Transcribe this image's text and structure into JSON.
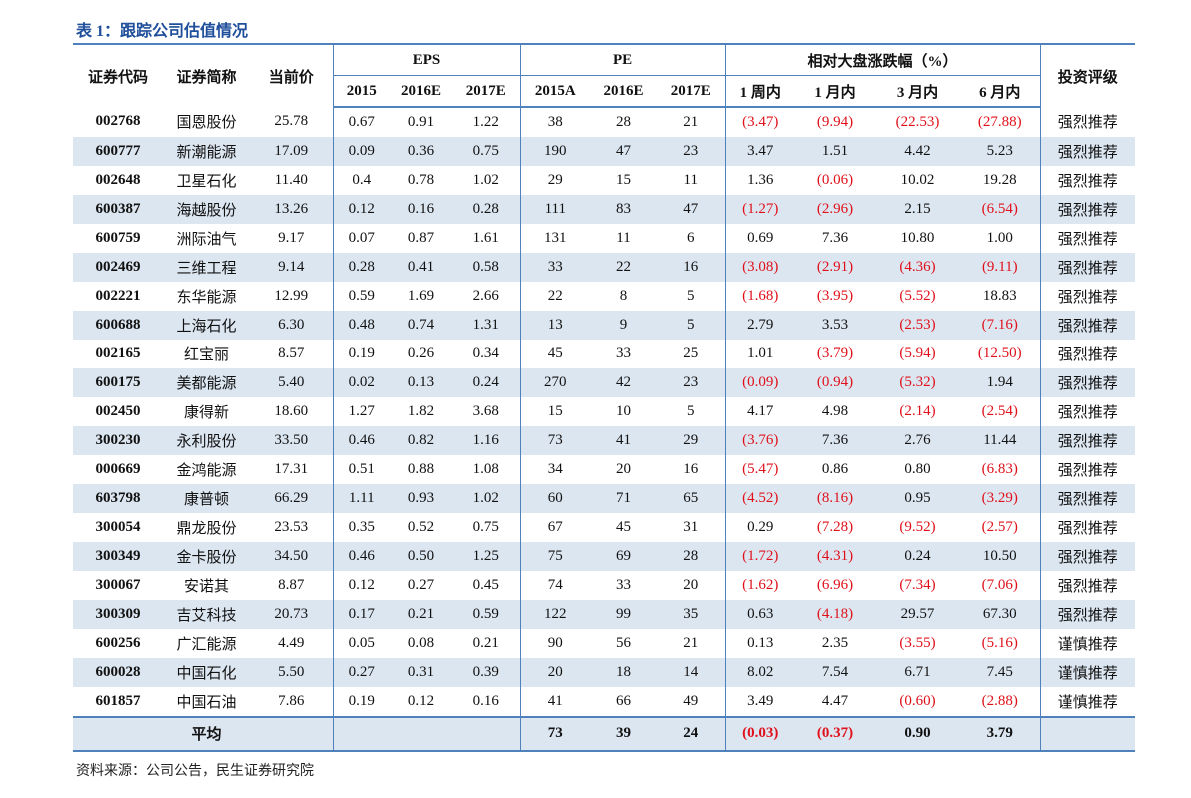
{
  "title": "表 1：跟踪公司估值情况",
  "header": {
    "code": "证券代码",
    "name": "证券简称",
    "price": "当前价",
    "eps": "EPS",
    "pe": "PE",
    "perf": "相对大盘涨跌幅（%）",
    "rating": "投资评级",
    "eps_years": [
      "2015",
      "2016E",
      "2017E"
    ],
    "pe_years": [
      "2015A",
      "2016E",
      "2017E"
    ],
    "perf_periods": [
      "1 周内",
      "1 月内",
      "3 月内",
      "6 月内"
    ]
  },
  "rows": [
    [
      "002768",
      "国恩股份",
      "25.78",
      "0.67",
      "0.91",
      "1.22",
      "38",
      "28",
      "21",
      "(3.47)",
      "(9.94)",
      "(22.53)",
      "(27.88)",
      "强烈推荐"
    ],
    [
      "600777",
      "新潮能源",
      "17.09",
      "0.09",
      "0.36",
      "0.75",
      "190",
      "47",
      "23",
      "3.47",
      "1.51",
      "4.42",
      "5.23",
      "强烈推荐"
    ],
    [
      "002648",
      "卫星石化",
      "11.40",
      "0.4",
      "0.78",
      "1.02",
      "29",
      "15",
      "11",
      "1.36",
      "(0.06)",
      "10.02",
      "19.28",
      "强烈推荐"
    ],
    [
      "600387",
      "海越股份",
      "13.26",
      "0.12",
      "0.16",
      "0.28",
      "111",
      "83",
      "47",
      "(1.27)",
      "(2.96)",
      "2.15",
      "(6.54)",
      "强烈推荐"
    ],
    [
      "600759",
      "洲际油气",
      "9.17",
      "0.07",
      "0.87",
      "1.61",
      "131",
      "11",
      "6",
      "0.69",
      "7.36",
      "10.80",
      "1.00",
      "强烈推荐"
    ],
    [
      "002469",
      "三维工程",
      "9.14",
      "0.28",
      "0.41",
      "0.58",
      "33",
      "22",
      "16",
      "(3.08)",
      "(2.91)",
      "(4.36)",
      "(9.11)",
      "强烈推荐"
    ],
    [
      "002221",
      "东华能源",
      "12.99",
      "0.59",
      "1.69",
      "2.66",
      "22",
      "8",
      "5",
      "(1.68)",
      "(3.95)",
      "(5.52)",
      "18.83",
      "强烈推荐"
    ],
    [
      "600688",
      "上海石化",
      "6.30",
      "0.48",
      "0.74",
      "1.31",
      "13",
      "9",
      "5",
      "2.79",
      "3.53",
      "(2.53)",
      "(7.16)",
      "强烈推荐"
    ],
    [
      "002165",
      "红宝丽",
      "8.57",
      "0.19",
      "0.26",
      "0.34",
      "45",
      "33",
      "25",
      "1.01",
      "(3.79)",
      "(5.94)",
      "(12.50)",
      "强烈推荐"
    ],
    [
      "600175",
      "美都能源",
      "5.40",
      "0.02",
      "0.13",
      "0.24",
      "270",
      "42",
      "23",
      "(0.09)",
      "(0.94)",
      "(5.32)",
      "1.94",
      "强烈推荐"
    ],
    [
      "002450",
      "康得新",
      "18.60",
      "1.27",
      "1.82",
      "3.68",
      "15",
      "10",
      "5",
      "4.17",
      "4.98",
      "(2.14)",
      "(2.54)",
      "强烈推荐"
    ],
    [
      "300230",
      "永利股份",
      "33.50",
      "0.46",
      "0.82",
      "1.16",
      "73",
      "41",
      "29",
      "(3.76)",
      "7.36",
      "2.76",
      "11.44",
      "强烈推荐"
    ],
    [
      "000669",
      "金鸿能源",
      "17.31",
      "0.51",
      "0.88",
      "1.08",
      "34",
      "20",
      "16",
      "(5.47)",
      "0.86",
      "0.80",
      "(6.83)",
      "强烈推荐"
    ],
    [
      "603798",
      "康普顿",
      "66.29",
      "1.11",
      "0.93",
      "1.02",
      "60",
      "71",
      "65",
      "(4.52)",
      "(8.16)",
      "0.95",
      "(3.29)",
      "强烈推荐"
    ],
    [
      "300054",
      "鼎龙股份",
      "23.53",
      "0.35",
      "0.52",
      "0.75",
      "67",
      "45",
      "31",
      "0.29",
      "(7.28)",
      "(9.52)",
      "(2.57)",
      "强烈推荐"
    ],
    [
      "300349",
      "金卡股份",
      "34.50",
      "0.46",
      "0.50",
      "1.25",
      "75",
      "69",
      "28",
      "(1.72)",
      "(4.31)",
      "0.24",
      "10.50",
      "强烈推荐"
    ],
    [
      "300067",
      "安诺其",
      "8.87",
      "0.12",
      "0.27",
      "0.45",
      "74",
      "33",
      "20",
      "(1.62)",
      "(6.96)",
      "(7.34)",
      "(7.06)",
      "强烈推荐"
    ],
    [
      "300309",
      "吉艾科技",
      "20.73",
      "0.17",
      "0.21",
      "0.59",
      "122",
      "99",
      "35",
      "0.63",
      "(4.18)",
      "29.57",
      "67.30",
      "强烈推荐"
    ],
    [
      "600256",
      "广汇能源",
      "4.49",
      "0.05",
      "0.08",
      "0.21",
      "90",
      "56",
      "21",
      "0.13",
      "2.35",
      "(3.55)",
      "(5.16)",
      "谨慎推荐"
    ],
    [
      "600028",
      "中国石化",
      "5.50",
      "0.27",
      "0.31",
      "0.39",
      "20",
      "18",
      "14",
      "8.02",
      "7.54",
      "6.71",
      "7.45",
      "谨慎推荐"
    ],
    [
      "601857",
      "中国石油",
      "7.86",
      "0.19",
      "0.12",
      "0.16",
      "41",
      "66",
      "49",
      "3.49",
      "4.47",
      "(0.60)",
      "(2.88)",
      "谨慎推荐"
    ]
  ],
  "footer": {
    "label": "平均",
    "pe": [
      "73",
      "39",
      "24"
    ],
    "perf": [
      "(0.03)",
      "(0.37)",
      "0.90",
      "3.79"
    ]
  },
  "source": "资料来源：公司公告，民生证券研究院"
}
